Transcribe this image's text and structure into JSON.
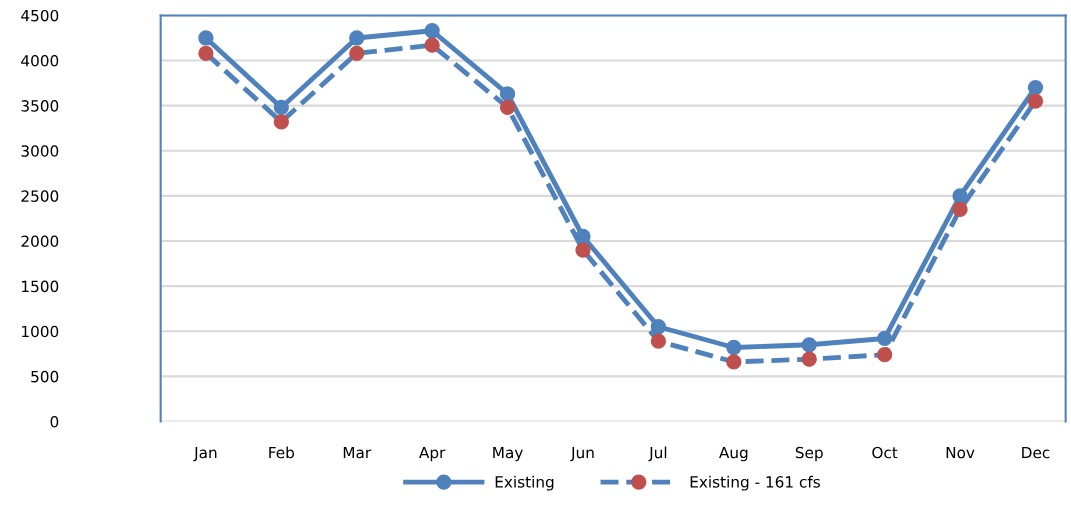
{
  "chart_data": {
    "type": "line",
    "categories": [
      "Jan",
      "Feb",
      "Mar",
      "Apr",
      "May",
      "Jun",
      "Jul",
      "Aug",
      "Sep",
      "Oct",
      "Nov",
      "Dec"
    ],
    "series": [
      {
        "name": "Existing",
        "color": "#4f81bd",
        "line_style": "solid",
        "marker": "circle",
        "values": [
          4250,
          3480,
          4250,
          4330,
          3630,
          2050,
          1050,
          820,
          850,
          920,
          2500,
          3700
        ]
      },
      {
        "name": "Existing - 161 cfs",
        "color": "#4f81bd",
        "colors": [
          "#c0504d",
          "#c0504d",
          "#c0504d",
          "#c0504d",
          "#c0504d",
          "#c0504d",
          "#c0504d",
          "#c0504d",
          "#c0504d",
          "#c0504d",
          "#c0504d",
          "#c0504d"
        ],
        "line_style": "dashed",
        "marker": "circle",
        "values": [
          4080,
          3320,
          4080,
          4170,
          3480,
          1900,
          890,
          660,
          690,
          740,
          2350,
          3550
        ]
      }
    ],
    "ylim": [
      0,
      4500
    ],
    "yticks": [
      0,
      500,
      1000,
      1500,
      2000,
      2500,
      3000,
      3500,
      4000,
      4500
    ],
    "grid": "y",
    "legend": "bottom"
  }
}
